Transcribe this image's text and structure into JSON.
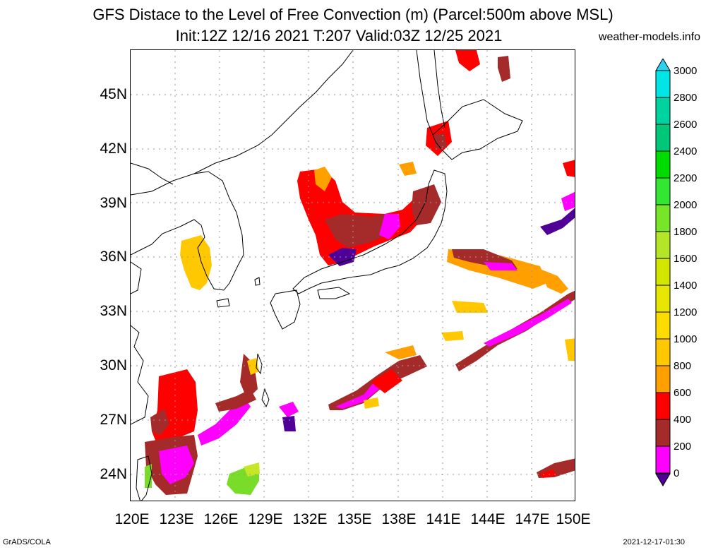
{
  "header": {
    "title_line1": "GFS Distace to the Level of Free Convection (m) (Parcel:500m above MSL)",
    "title_line2": "Init:12Z 12/16 2021 T:207 Valid:03Z 12/25 2021",
    "site": "weather-models.info"
  },
  "footer": {
    "left": "GrADS/COLA",
    "right": "2021-12-17-01:30"
  },
  "axes": {
    "lat_labels": [
      "45N",
      "42N",
      "39N",
      "36N",
      "33N",
      "30N",
      "27N",
      "24N"
    ],
    "lon_labels": [
      "120E",
      "123E",
      "126E",
      "129E",
      "132E",
      "135E",
      "138E",
      "141E",
      "144E",
      "147E",
      "150E"
    ],
    "lon_range": [
      120,
      150
    ],
    "lat_range": [
      22.6,
      47.6
    ]
  },
  "colorbar": {
    "labels": [
      "3000",
      "2800",
      "2600",
      "2400",
      "2200",
      "2000",
      "1800",
      "1600",
      "1400",
      "1200",
      "1000",
      "800",
      "600",
      "400",
      "200",
      "0"
    ],
    "colors": [
      "#00e6e6",
      "#00d2a0",
      "#00c878",
      "#00dc00",
      "#32e632",
      "#78e628",
      "#b4e628",
      "#d2e600",
      "#e6e600",
      "#ffdc00",
      "#ffc800",
      "#ffa000",
      "#ff0000",
      "#a52a2a",
      "#ff00ff",
      "#500096"
    ],
    "top_triangle_color": "#28d2f0",
    "bottom_triangle_color": "#500096"
  },
  "field_colors": {
    "c0": "#500096",
    "c200": "#ff00ff",
    "c400": "#a52a2a",
    "c600": "#ff0000",
    "c800": "#ffa000",
    "c1000": "#ffc800",
    "green": "#78dc28",
    "yellowgreen": "#c8e628"
  }
}
